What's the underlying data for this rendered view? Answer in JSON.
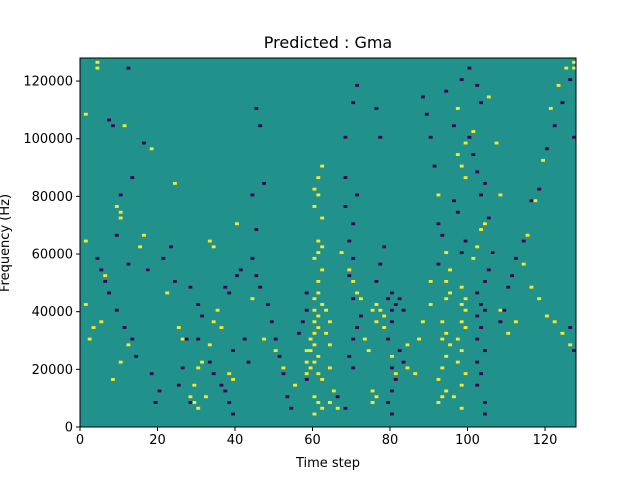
{
  "chart_data": {
    "type": "heatmap",
    "title": "Predicted : Gma",
    "xlabel": "Time step",
    "ylabel": "Frequency (Hz)",
    "xlim": [
      0,
      128
    ],
    "ylim": [
      0,
      128000
    ],
    "xticks": [
      0,
      20,
      40,
      60,
      80,
      100,
      120
    ],
    "yticks": [
      0,
      20000,
      40000,
      60000,
      80000,
      100000,
      120000
    ],
    "n_rows": 128,
    "row_height_hz": 1000,
    "values": [
      -1,
      0,
      1
    ],
    "colors": {
      "background": "#21918c",
      "high": "#fde725",
      "low": "#440154"
    },
    "grid": false,
    "high_cells": [
      [
        4,
        126
      ],
      [
        4,
        124
      ],
      [
        127,
        126
      ],
      [
        127,
        124
      ],
      [
        1,
        108
      ],
      [
        11,
        104
      ],
      [
        18,
        96
      ],
      [
        24,
        84
      ],
      [
        9,
        76
      ],
      [
        10,
        74
      ],
      [
        10,
        72
      ],
      [
        1,
        64
      ],
      [
        33,
        64
      ],
      [
        34,
        62
      ],
      [
        62,
        90
      ],
      [
        61,
        86
      ],
      [
        60,
        82
      ],
      [
        61,
        80
      ],
      [
        60,
        76
      ],
      [
        62,
        72
      ],
      [
        61,
        64
      ],
      [
        62,
        62
      ],
      [
        61,
        60
      ],
      [
        60,
        58
      ],
      [
        62,
        54
      ],
      [
        61,
        50
      ],
      [
        61,
        46
      ],
      [
        60,
        44
      ],
      [
        62,
        42
      ],
      [
        60,
        40
      ],
      [
        61,
        38
      ],
      [
        60,
        36
      ],
      [
        61,
        34
      ],
      [
        60,
        32
      ],
      [
        59,
        30
      ],
      [
        60,
        28
      ],
      [
        59,
        26
      ],
      [
        61,
        24
      ],
      [
        60,
        22
      ],
      [
        59,
        20
      ],
      [
        61,
        18
      ],
      [
        62,
        16
      ],
      [
        60,
        10
      ],
      [
        61,
        8
      ],
      [
        62,
        6
      ],
      [
        60,
        4
      ],
      [
        58,
        26
      ],
      [
        58,
        22
      ],
      [
        58,
        18
      ],
      [
        63,
        40
      ],
      [
        64,
        36
      ],
      [
        63,
        32
      ],
      [
        64,
        28
      ],
      [
        64,
        20
      ],
      [
        65,
        12
      ],
      [
        64,
        8
      ],
      [
        66,
        6
      ],
      [
        76,
        42
      ],
      [
        77,
        40
      ],
      [
        78,
        38
      ],
      [
        75,
        40
      ],
      [
        76,
        36
      ],
      [
        75,
        12
      ],
      [
        76,
        10
      ],
      [
        75,
        8
      ],
      [
        92,
        80
      ],
      [
        94,
        60
      ],
      [
        95,
        54
      ],
      [
        94,
        50
      ],
      [
        95,
        46
      ],
      [
        94,
        44
      ],
      [
        93,
        36
      ],
      [
        94,
        32
      ],
      [
        93,
        30
      ],
      [
        95,
        28
      ],
      [
        94,
        24
      ],
      [
        93,
        20
      ],
      [
        92,
        16
      ],
      [
        94,
        12
      ],
      [
        93,
        10
      ],
      [
        92,
        8
      ],
      [
        98,
        48
      ],
      [
        99,
        44
      ],
      [
        98,
        42
      ],
      [
        99,
        40
      ],
      [
        98,
        36
      ],
      [
        99,
        34
      ],
      [
        97,
        30
      ],
      [
        98,
        26
      ],
      [
        97,
        22
      ],
      [
        99,
        18
      ],
      [
        98,
        14
      ],
      [
        96,
        10
      ],
      [
        98,
        6
      ],
      [
        99,
        86
      ],
      [
        98,
        90
      ],
      [
        97,
        94
      ],
      [
        99,
        98
      ],
      [
        32,
        10
      ],
      [
        29,
        8
      ],
      [
        30,
        6
      ],
      [
        35,
        40
      ],
      [
        34,
        36
      ],
      [
        33,
        28
      ],
      [
        31,
        22
      ],
      [
        30,
        20
      ],
      [
        29,
        14
      ],
      [
        28,
        10
      ],
      [
        2,
        30
      ],
      [
        3,
        34
      ],
      [
        5,
        36
      ],
      [
        1,
        42
      ],
      [
        6,
        52
      ],
      [
        8,
        16
      ],
      [
        10,
        22
      ],
      [
        12,
        28
      ],
      [
        15,
        62
      ],
      [
        16,
        66
      ],
      [
        17,
        54
      ],
      [
        22,
        46
      ],
      [
        25,
        34
      ],
      [
        26,
        30
      ],
      [
        36,
        34
      ],
      [
        38,
        18
      ],
      [
        39,
        16
      ],
      [
        40,
        70
      ],
      [
        44,
        44
      ],
      [
        47,
        30
      ],
      [
        50,
        26
      ],
      [
        52,
        20
      ],
      [
        55,
        14
      ],
      [
        67,
        60
      ],
      [
        69,
        54
      ],
      [
        70,
        50
      ],
      [
        71,
        46
      ],
      [
        72,
        44
      ],
      [
        73,
        30
      ],
      [
        74,
        26
      ],
      [
        78,
        34
      ],
      [
        80,
        24
      ],
      [
        81,
        18
      ],
      [
        84,
        28
      ],
      [
        84,
        20
      ],
      [
        86,
        18
      ],
      [
        87,
        30
      ],
      [
        88,
        36
      ],
      [
        90,
        50
      ],
      [
        90,
        42
      ],
      [
        101,
        58
      ],
      [
        102,
        62
      ],
      [
        103,
        68
      ],
      [
        104,
        70
      ],
      [
        106,
        60
      ],
      [
        108,
        40
      ],
      [
        110,
        32
      ],
      [
        112,
        36
      ],
      [
        114,
        56
      ],
      [
        116,
        48
      ],
      [
        118,
        44
      ],
      [
        120,
        38
      ],
      [
        122,
        36
      ],
      [
        124,
        32
      ],
      [
        126,
        28
      ],
      [
        115,
        66
      ],
      [
        117,
        78
      ],
      [
        119,
        92
      ],
      [
        121,
        110
      ],
      [
        123,
        118
      ],
      [
        125,
        124
      ],
      [
        108,
        80
      ],
      [
        107,
        98
      ],
      [
        105,
        114
      ],
      [
        101,
        102
      ],
      [
        97,
        110
      ]
    ],
    "low_cells": [
      [
        7,
        106
      ],
      [
        8,
        104
      ],
      [
        12,
        124
      ],
      [
        16,
        98
      ],
      [
        13,
        86
      ],
      [
        10,
        80
      ],
      [
        9,
        66
      ],
      [
        4,
        58
      ],
      [
        12,
        56
      ],
      [
        17,
        54
      ],
      [
        21,
        58
      ],
      [
        23,
        62
      ],
      [
        24,
        50
      ],
      [
        28,
        48
      ],
      [
        30,
        42
      ],
      [
        31,
        38
      ],
      [
        27,
        30
      ],
      [
        26,
        20
      ],
      [
        25,
        14
      ],
      [
        28,
        8
      ],
      [
        30,
        30
      ],
      [
        33,
        22
      ],
      [
        34,
        18
      ],
      [
        36,
        14
      ],
      [
        38,
        8
      ],
      [
        44,
        58
      ],
      [
        45,
        52
      ],
      [
        46,
        48
      ],
      [
        48,
        42
      ],
      [
        49,
        36
      ],
      [
        50,
        30
      ],
      [
        51,
        24
      ],
      [
        52,
        18
      ],
      [
        53,
        10
      ],
      [
        54,
        6
      ],
      [
        45,
        68
      ],
      [
        44,
        80
      ],
      [
        47,
        84
      ],
      [
        46,
        104
      ],
      [
        45,
        110
      ],
      [
        58,
        46
      ],
      [
        58,
        40
      ],
      [
        57,
        36
      ],
      [
        56,
        32
      ],
      [
        58,
        16
      ],
      [
        66,
        10
      ],
      [
        68,
        6
      ],
      [
        69,
        24
      ],
      [
        70,
        20
      ],
      [
        70,
        30
      ],
      [
        71,
        34
      ],
      [
        72,
        38
      ],
      [
        70,
        44
      ],
      [
        69,
        52
      ],
      [
        70,
        58
      ],
      [
        69,
        64
      ],
      [
        70,
        70
      ],
      [
        68,
        76
      ],
      [
        71,
        80
      ],
      [
        68,
        86
      ],
      [
        68,
        100
      ],
      [
        70,
        112
      ],
      [
        71,
        118
      ],
      [
        76,
        50
      ],
      [
        77,
        56
      ],
      [
        78,
        62
      ],
      [
        79,
        44
      ],
      [
        80,
        40
      ],
      [
        81,
        42
      ],
      [
        80,
        46
      ],
      [
        82,
        44
      ],
      [
        83,
        40
      ],
      [
        80,
        36
      ],
      [
        79,
        30
      ],
      [
        80,
        20
      ],
      [
        81,
        16
      ],
      [
        80,
        12
      ],
      [
        79,
        8
      ],
      [
        82,
        26
      ],
      [
        83,
        22
      ],
      [
        80,
        4
      ],
      [
        77,
        100
      ],
      [
        76,
        110
      ],
      [
        88,
        114
      ],
      [
        89,
        108
      ],
      [
        90,
        100
      ],
      [
        91,
        90
      ],
      [
        92,
        70
      ],
      [
        94,
        116
      ],
      [
        96,
        104
      ],
      [
        98,
        120
      ],
      [
        100,
        124
      ],
      [
        102,
        118
      ],
      [
        103,
        112
      ],
      [
        100,
        100
      ],
      [
        101,
        94
      ],
      [
        102,
        88
      ],
      [
        104,
        84
      ],
      [
        103,
        80
      ],
      [
        105,
        72
      ],
      [
        106,
        60
      ],
      [
        105,
        54
      ],
      [
        104,
        50
      ],
      [
        102,
        46
      ],
      [
        103,
        42
      ],
      [
        104,
        40
      ],
      [
        102,
        38
      ],
      [
        103,
        34
      ],
      [
        102,
        30
      ],
      [
        104,
        26
      ],
      [
        102,
        22
      ],
      [
        103,
        18
      ],
      [
        102,
        14
      ],
      [
        104,
        8
      ],
      [
        104,
        4
      ],
      [
        108,
        36
      ],
      [
        109,
        40
      ],
      [
        110,
        48
      ],
      [
        111,
        52
      ],
      [
        112,
        58
      ],
      [
        114,
        64
      ],
      [
        116,
        78
      ],
      [
        118,
        82
      ],
      [
        120,
        96
      ],
      [
        122,
        104
      ],
      [
        124,
        112
      ],
      [
        126,
        120
      ],
      [
        127,
        100
      ],
      [
        126,
        34
      ],
      [
        127,
        26
      ],
      [
        96,
        78
      ],
      [
        97,
        74
      ],
      [
        93,
        66
      ],
      [
        92,
        56
      ],
      [
        98,
        60
      ],
      [
        99,
        64
      ],
      [
        37,
        48
      ],
      [
        38,
        46
      ],
      [
        40,
        52
      ],
      [
        41,
        54
      ],
      [
        42,
        30
      ],
      [
        43,
        22
      ],
      [
        39,
        26
      ],
      [
        37,
        12
      ],
      [
        39,
        4
      ],
      [
        20,
        12
      ],
      [
        19,
        8
      ],
      [
        18,
        18
      ],
      [
        14,
        24
      ],
      [
        13,
        30
      ],
      [
        11,
        34
      ],
      [
        9,
        40
      ],
      [
        7,
        46
      ],
      [
        6,
        50
      ],
      [
        5,
        54
      ]
    ]
  }
}
